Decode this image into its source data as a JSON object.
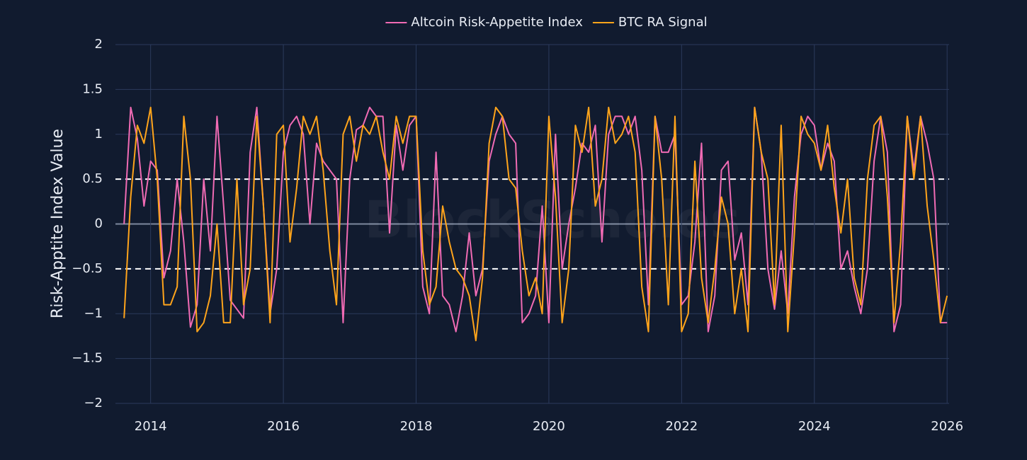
{
  "chart_data": {
    "type": "line",
    "y_label": "Risk-Apptite Index Value",
    "watermark": "BlockScholes",
    "xlim": [
      2013.47,
      2026.03
    ],
    "xticks": [
      2014,
      2016,
      2018,
      2020,
      2022,
      2024,
      2026
    ],
    "ylim": [
      -2,
      2
    ],
    "yticks": [
      {
        "value": -2,
        "label": "−2"
      },
      {
        "value": -1.5,
        "label": "−1.5"
      },
      {
        "value": -1,
        "label": "−1"
      },
      {
        "value": -0.5,
        "label": "−0.5"
      },
      0,
      0.5,
      1,
      1.5,
      2
    ],
    "hlines": [
      0.5,
      -0.5
    ],
    "grid": true,
    "legend": "top",
    "x": [
      2013.6,
      2013.7,
      2013.8,
      2013.9,
      2014.0,
      2014.1,
      2014.2,
      2014.3,
      2014.4,
      2014.5,
      2014.6,
      2014.7,
      2014.8,
      2014.9,
      2015.0,
      2015.1,
      2015.2,
      2015.3,
      2015.4,
      2015.5,
      2015.6,
      2015.7,
      2015.8,
      2015.9,
      2016.0,
      2016.1,
      2016.2,
      2016.3,
      2016.4,
      2016.5,
      2016.6,
      2016.7,
      2016.8,
      2016.9,
      2017.0,
      2017.1,
      2017.2,
      2017.3,
      2017.4,
      2017.5,
      2017.6,
      2017.7,
      2017.8,
      2017.9,
      2018.0,
      2018.1,
      2018.2,
      2018.3,
      2018.4,
      2018.5,
      2018.6,
      2018.7,
      2018.8,
      2018.9,
      2019.0,
      2019.1,
      2019.2,
      2019.3,
      2019.4,
      2019.5,
      2019.6,
      2019.7,
      2019.8,
      2019.9,
      2020.0,
      2020.1,
      2020.2,
      2020.3,
      2020.4,
      2020.5,
      2020.6,
      2020.7,
      2020.8,
      2020.9,
      2021.0,
      2021.1,
      2021.2,
      2021.3,
      2021.4,
      2021.5,
      2021.6,
      2021.7,
      2021.8,
      2021.9,
      2022.0,
      2022.1,
      2022.2,
      2022.3,
      2022.4,
      2022.5,
      2022.6,
      2022.7,
      2022.8,
      2022.9,
      2023.0,
      2023.1,
      2023.2,
      2023.3,
      2023.4,
      2023.5,
      2023.6,
      2023.7,
      2023.8,
      2023.9,
      2024.0,
      2024.1,
      2024.2,
      2024.3,
      2024.4,
      2024.5,
      2024.6,
      2024.7,
      2024.8,
      2024.9,
      2025.0,
      2025.1,
      2025.2,
      2025.3,
      2025.4,
      2025.5,
      2025.6,
      2025.7,
      2025.8,
      2025.9,
      2026.0
    ],
    "series": [
      {
        "name": "Altcoin Risk-Appetite Index",
        "color": "#f06bb4",
        "values": [
          0,
          1.3,
          0.95,
          0.2,
          0.7,
          0.6,
          -0.6,
          -0.3,
          0.5,
          -0.2,
          -1.15,
          -0.9,
          0.5,
          -0.3,
          1.2,
          0.2,
          -0.85,
          -0.95,
          -1.05,
          0.8,
          1.3,
          0.2,
          -1.0,
          -0.5,
          0.8,
          1.1,
          1.2,
          1.0,
          0.0,
          0.9,
          0.7,
          0.6,
          0.5,
          -1.1,
          0.5,
          1.05,
          1.1,
          1.3,
          1.2,
          1.2,
          -0.1,
          1.1,
          0.6,
          1.1,
          1.2,
          -0.7,
          -1.0,
          0.8,
          -0.8,
          -0.9,
          -1.2,
          -0.8,
          -0.1,
          -0.8,
          -0.5,
          0.7,
          1.0,
          1.2,
          1.0,
          0.9,
          -1.1,
          -1.0,
          -0.8,
          0.2,
          -1.1,
          1.0,
          -0.5,
          0.0,
          0.4,
          0.9,
          0.8,
          1.1,
          -0.2,
          1.0,
          1.2,
          1.2,
          1.0,
          1.2,
          0.6,
          -0.9,
          1.2,
          0.8,
          0.8,
          1.0,
          -0.9,
          -0.8,
          -0.2,
          0.9,
          -1.2,
          -0.8,
          0.6,
          0.7,
          -0.4,
          -0.1,
          -0.9,
          1.3,
          0.8,
          -0.5,
          -0.95,
          -0.3,
          -1.0,
          0.3,
          1.0,
          1.2,
          1.1,
          0.6,
          0.9,
          0.7,
          -0.5,
          -0.3,
          -0.7,
          -1.0,
          -0.5,
          0.7,
          1.2,
          0.8,
          -1.2,
          -0.9,
          1.2,
          0.6,
          1.2,
          0.9,
          0.5,
          -1.1,
          -1.1
        ]
      },
      {
        "name": "BTC RA Signal",
        "color": "#ffa41b",
        "values": [
          -1.05,
          0.3,
          1.1,
          0.9,
          1.3,
          0.5,
          -0.9,
          -0.9,
          -0.7,
          1.2,
          0.5,
          -1.2,
          -1.1,
          -0.8,
          0.0,
          -1.1,
          -1.1,
          0.5,
          -0.9,
          -0.5,
          1.2,
          0.2,
          -1.1,
          1.0,
          1.1,
          -0.2,
          0.4,
          1.2,
          1.0,
          1.2,
          0.6,
          -0.3,
          -0.9,
          1.0,
          1.2,
          0.7,
          1.1,
          1.0,
          1.2,
          0.8,
          0.5,
          1.2,
          0.9,
          1.2,
          1.2,
          -0.3,
          -0.9,
          -0.7,
          0.2,
          -0.2,
          -0.5,
          -0.6,
          -0.8,
          -1.3,
          -0.6,
          0.9,
          1.3,
          1.2,
          0.5,
          0.4,
          -0.3,
          -0.8,
          -0.6,
          -1.0,
          1.2,
          0.3,
          -1.1,
          -0.5,
          1.1,
          0.8,
          1.3,
          0.2,
          0.5,
          1.3,
          0.9,
          1.0,
          1.2,
          0.8,
          -0.7,
          -1.2,
          1.2,
          0.5,
          -0.9,
          1.2,
          -1.2,
          -1.0,
          0.7,
          -0.6,
          -1.1,
          -0.5,
          0.3,
          0.0,
          -1.0,
          -0.5,
          -1.2,
          1.3,
          0.8,
          0.5,
          -0.9,
          1.1,
          -1.2,
          -0.1,
          1.2,
          1.0,
          0.9,
          0.6,
          1.1,
          0.4,
          -0.1,
          0.5,
          -0.6,
          -0.9,
          0.5,
          1.1,
          1.2,
          0.3,
          -1.1,
          -0.2,
          1.2,
          0.5,
          1.2,
          0.2,
          -0.4,
          -1.1,
          -0.8
        ]
      }
    ]
  }
}
